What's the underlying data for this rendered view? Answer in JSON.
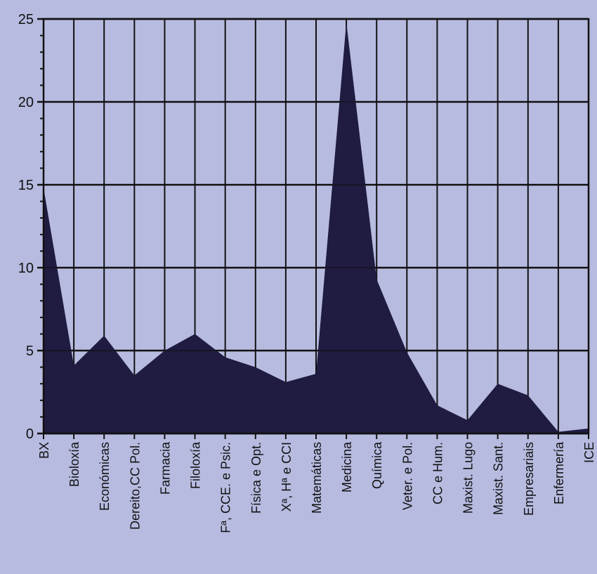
{
  "chart_data": {
    "type": "area",
    "title": "",
    "xlabel": "",
    "ylabel": "",
    "ylim": [
      0,
      25
    ],
    "yticks": [
      0,
      5,
      10,
      15,
      20,
      25
    ],
    "grid": true,
    "categories": [
      "BX",
      "Bioloxía",
      "Económicas",
      "Dereito,CC Pol.",
      "Farmacia",
      "Filoloxía",
      "Fª, CCE. e Psic.",
      "Física e Opt.",
      "Xª, Hª e CCI",
      "Matemáticas",
      "Medicina",
      "Química",
      "Veter. e Pol.",
      "CC e Hum.",
      "Maxist. Lugo",
      "Maxist. Sant.",
      "Empresariais",
      "Enfermería",
      "ICE"
    ],
    "values": [
      14.8,
      4.1,
      5.9,
      3.5,
      5.0,
      6.0,
      4.6,
      4.0,
      3.1,
      3.6,
      24.8,
      9.3,
      4.9,
      1.7,
      0.8,
      3.0,
      2.3,
      0.1,
      0.3
    ],
    "colors": {
      "background": "#b7bbe0",
      "fill": "#201b40",
      "grid": "#111111",
      "text": "#111111"
    }
  }
}
